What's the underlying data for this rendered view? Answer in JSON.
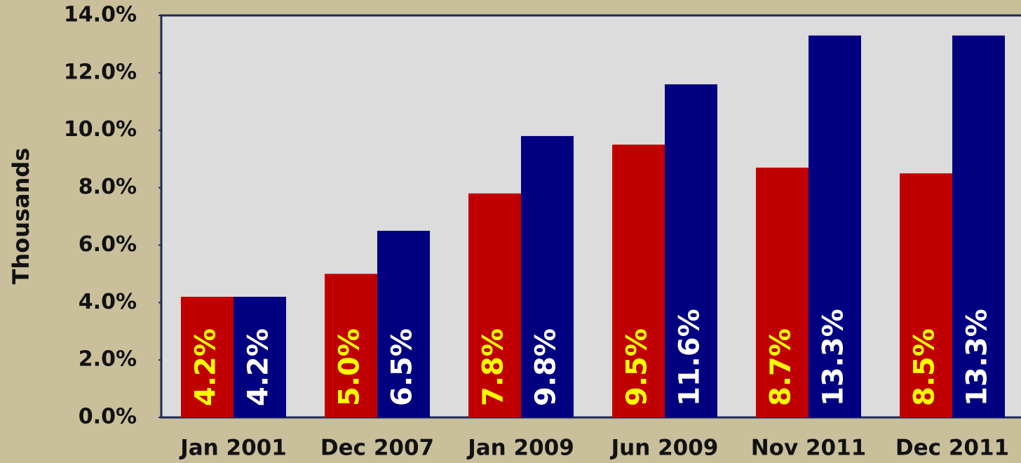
{
  "chart_data": {
    "type": "bar",
    "y_label": "Thousands",
    "categories": [
      "Jan 2001",
      "Dec 2007",
      "Jan 2009",
      "Jun 2009",
      "Nov 2011",
      "Dec 2011"
    ],
    "series": [
      {
        "color": "#c00000",
        "label_color": "#ffff00",
        "values": [
          4.2,
          5.0,
          7.8,
          9.5,
          8.7,
          8.5
        ],
        "value_labels": [
          "4.2%",
          "5.0%",
          "7.8%",
          "9.5%",
          "8.7%",
          "8.5%"
        ]
      },
      {
        "color": "#000080",
        "label_color": "#ffffff",
        "values": [
          4.2,
          6.5,
          9.8,
          11.6,
          13.3,
          13.3
        ],
        "value_labels": [
          "4.2%",
          "6.5%",
          "9.8%",
          "11.6%",
          "13.3%",
          "13.3%"
        ]
      }
    ],
    "ylim": [
      0,
      14
    ],
    "yticks": [
      {
        "value": 0,
        "label": "0.0%"
      },
      {
        "value": 2,
        "label": "2.0%"
      },
      {
        "value": 4,
        "label": "4.0%"
      },
      {
        "value": 6,
        "label": "6.0%"
      },
      {
        "value": 8,
        "label": "8.0%"
      },
      {
        "value": 10,
        "label": "10.0%"
      },
      {
        "value": 12,
        "label": "12.0%"
      },
      {
        "value": 14,
        "label": "14.0%"
      }
    ],
    "plot_background": "#dcdcdc",
    "grid": false
  }
}
